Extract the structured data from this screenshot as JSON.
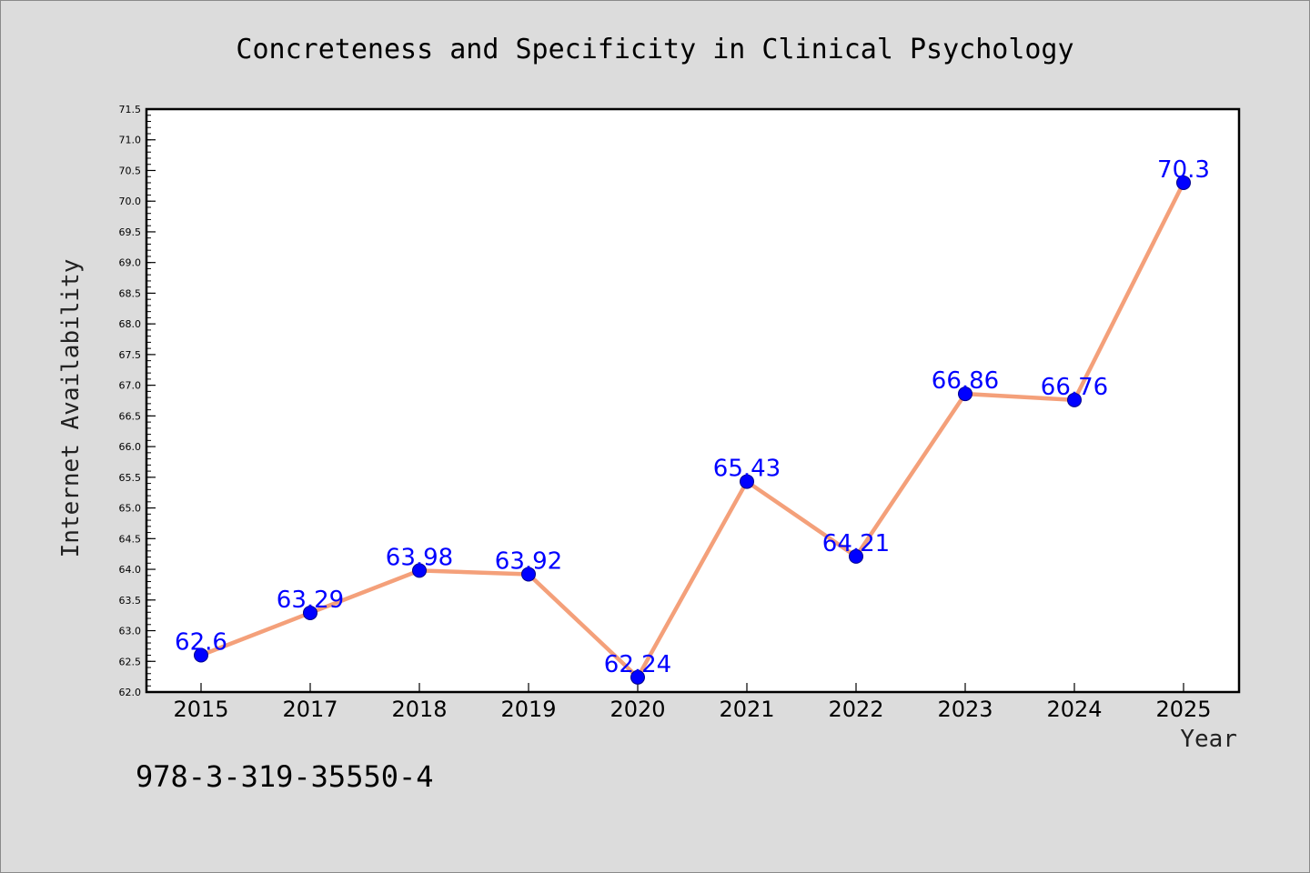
{
  "footer": {
    "code": "978-3-319-35550-4"
  },
  "chart_data": {
    "type": "line",
    "title": "Concreteness and Specificity in Clinical Psychology",
    "xlabel": "Year",
    "ylabel": "Internet Availability",
    "categories": [
      "2015",
      "2017",
      "2018",
      "2019",
      "2020",
      "2021",
      "2022",
      "2023",
      "2024",
      "2025"
    ],
    "series": [
      {
        "values": [
          62.6,
          63.29,
          63.98,
          63.92,
          62.24,
          65.43,
          64.21,
          66.86,
          66.76,
          70.3
        ],
        "data_labels": [
          "62.6",
          "63.29",
          "63.98",
          "63.92",
          "62.24",
          "65.43",
          "64.21",
          "66.86",
          "66.76",
          "70.3"
        ]
      }
    ],
    "ylim": [
      62.0,
      71.5
    ],
    "y_major_ticks": [
      "62.0",
      "62.5",
      "63.0",
      "63.5",
      "64.0",
      "64.5",
      "65.0",
      "65.5",
      "66.0",
      "66.5",
      "67.0",
      "67.5",
      "68.0",
      "68.5",
      "69.0",
      "69.5",
      "70.0",
      "70.5",
      "71.0",
      "71.5"
    ],
    "grid": false,
    "legend": "none",
    "colors": {
      "line": "#f4a07a",
      "marker": "#0000ff",
      "marker_edge": "#00008b",
      "labels": "#0000ff",
      "background": "#dcdcdc",
      "plot_area": "#ffffff"
    }
  }
}
